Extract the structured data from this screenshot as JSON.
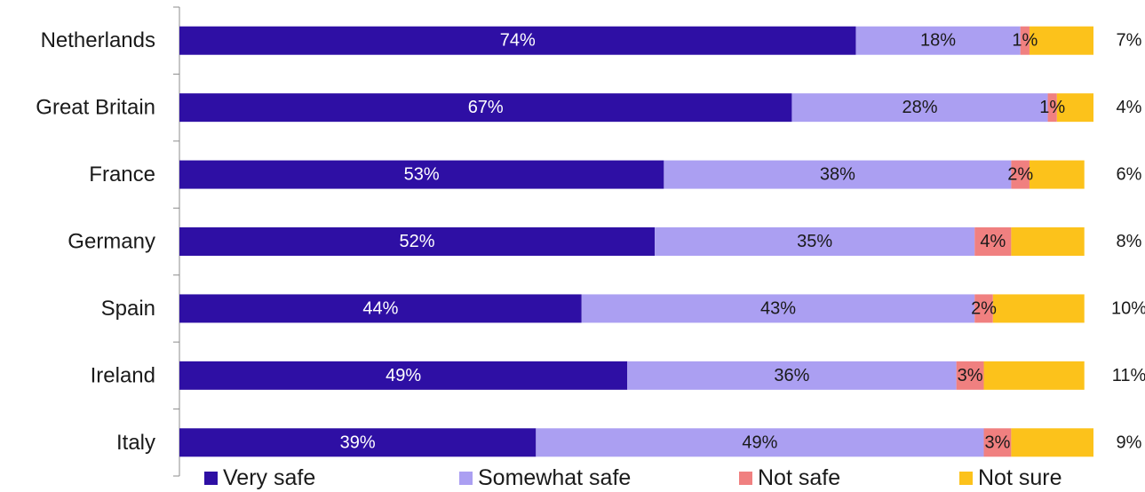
{
  "chart_data": {
    "type": "bar",
    "orientation": "horizontal",
    "stacked": true,
    "categories": [
      "Netherlands",
      "Great Britain",
      "France",
      "Germany",
      "Spain",
      "Ireland",
      "Italy"
    ],
    "series": [
      {
        "name": "Very safe",
        "color": "#2e0fa4",
        "label_color": "#ffffff",
        "values": [
          74,
          67,
          53,
          52,
          44,
          49,
          39
        ]
      },
      {
        "name": "Somewhat safe",
        "color": "#ab9ff2",
        "label_color": "#1a1a1a",
        "values": [
          18,
          28,
          38,
          35,
          43,
          36,
          49
        ]
      },
      {
        "name": "Not safe",
        "color": "#f08080",
        "label_color": "#1a1a1a",
        "values": [
          1,
          1,
          2,
          4,
          2,
          3,
          3
        ]
      },
      {
        "name": "Not sure",
        "color": "#fcc21b",
        "label_color": "#1a1a1a",
        "values": [
          7,
          4,
          6,
          8,
          10,
          11,
          9
        ]
      }
    ],
    "value_suffix": "%",
    "last_series_labels_outside": true,
    "xlim": [
      0,
      100
    ],
    "grid": false,
    "legend_position": "bottom"
  }
}
